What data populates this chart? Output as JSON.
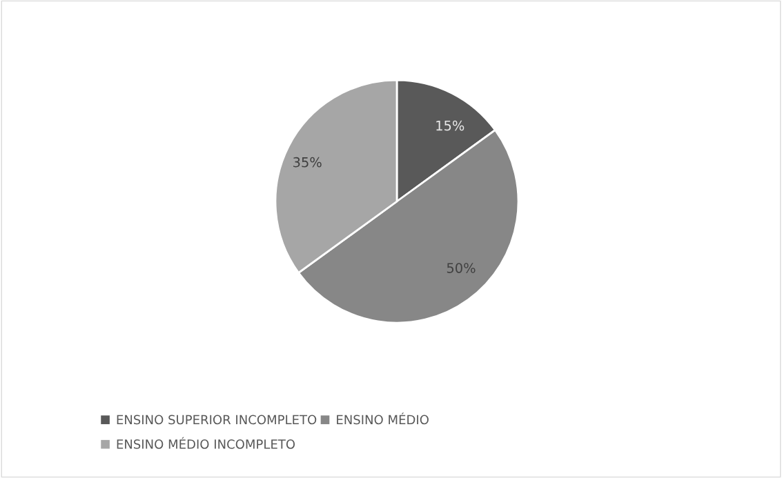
{
  "chart_data": {
    "type": "pie",
    "categories": [
      "ENSINO SUPERIOR INCOMPLETO",
      "ENSINO MÉDIO",
      "ENSINO MÉDIO INCOMPLETO"
    ],
    "values": [
      15,
      50,
      35
    ],
    "value_labels": [
      "15%",
      "50%",
      "35%"
    ],
    "colors": [
      "#595959",
      "#878787",
      "#a6a6a6"
    ],
    "legend": "bottom"
  }
}
